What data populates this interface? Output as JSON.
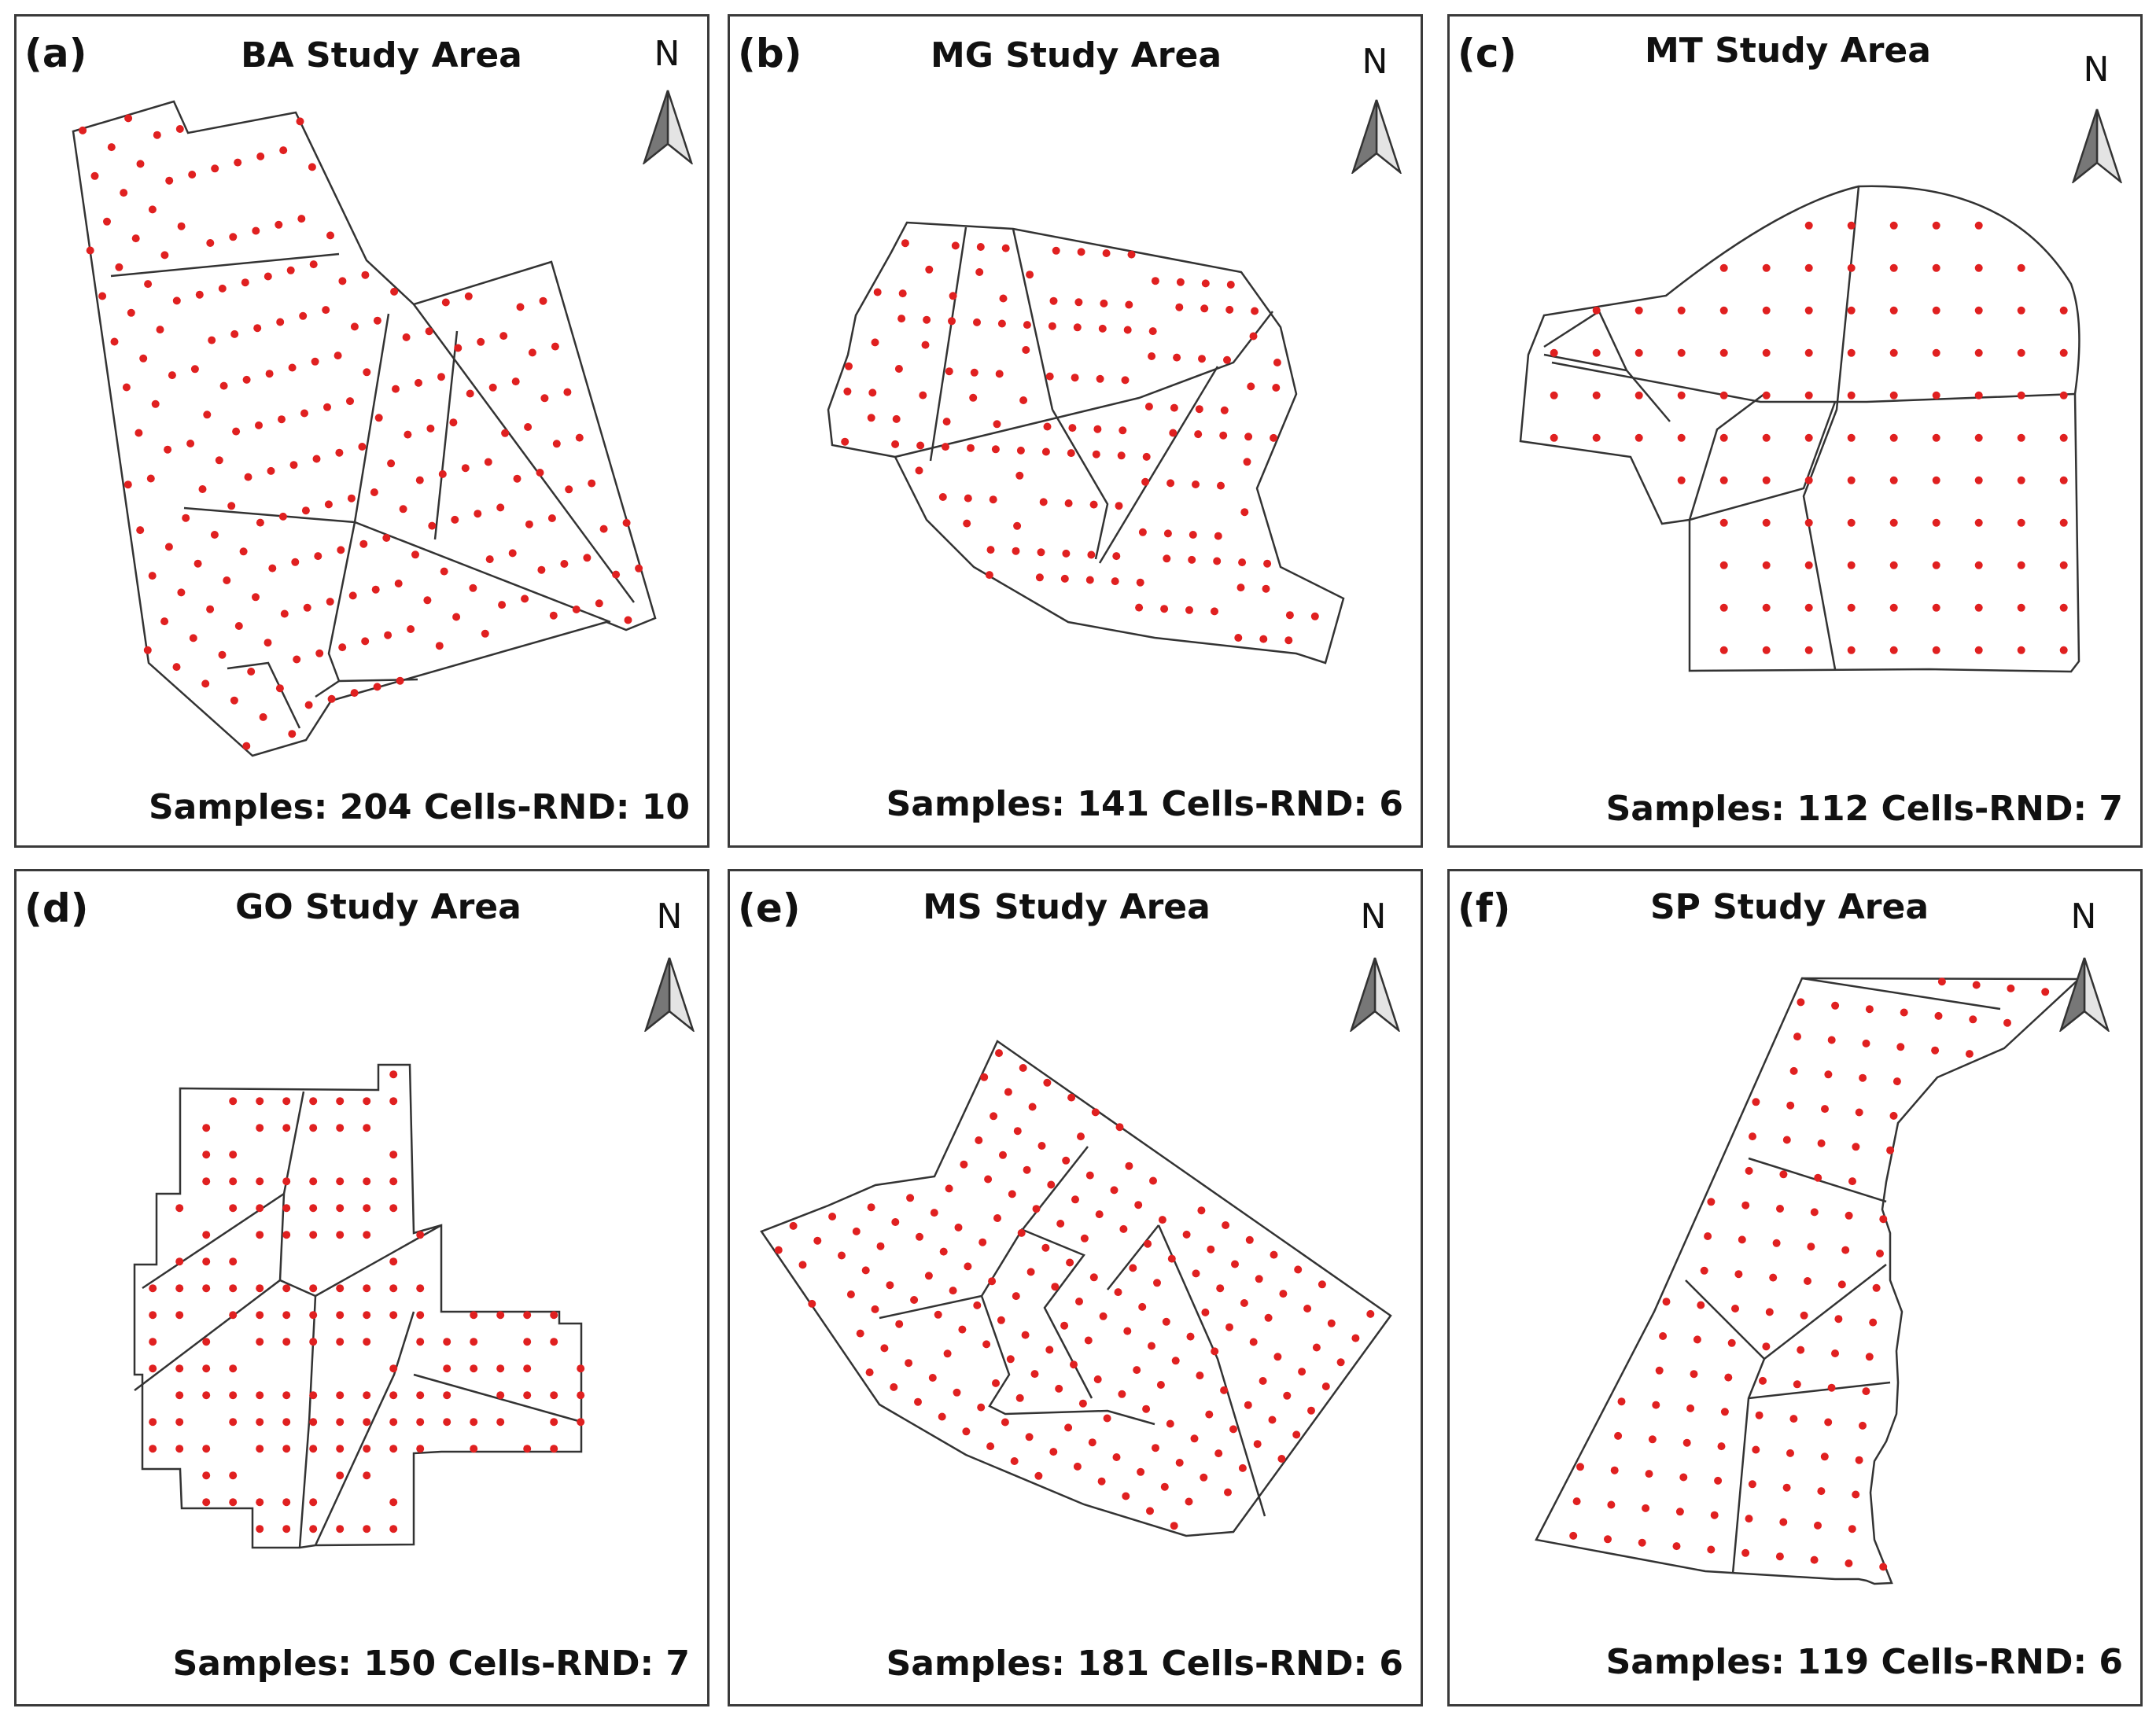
{
  "north_label": "N",
  "colors": {
    "sample_point": "#e02020",
    "outline": "#333333",
    "arrow_dark": "#777777",
    "arrow_light": "#e4e4e4"
  },
  "panels": [
    {
      "letter": "(a)",
      "title": "BA Study Area",
      "caption": "Samples: 204 Cells-RND: 10",
      "samples": 204,
      "cells_rnd": 10
    },
    {
      "letter": "(b)",
      "title": "MG Study Area",
      "caption": "Samples: 141 Cells-RND: 6",
      "samples": 141,
      "cells_rnd": 6
    },
    {
      "letter": "(c)",
      "title": "MT Study Area",
      "caption": "Samples: 112 Cells-RND: 7",
      "samples": 112,
      "cells_rnd": 7
    },
    {
      "letter": "(d)",
      "title": "GO Study Area",
      "caption": "Samples: 150 Cells-RND: 7",
      "samples": 150,
      "cells_rnd": 7
    },
    {
      "letter": "(e)",
      "title": "MS Study Area",
      "caption": "Samples: 181 Cells-RND: 6",
      "samples": 181,
      "cells_rnd": 6
    },
    {
      "letter": "(f)",
      "title": "SP Study Area",
      "caption": "Samples: 119 Cells-RND: 6",
      "samples": 119,
      "cells_rnd": 6
    }
  ]
}
